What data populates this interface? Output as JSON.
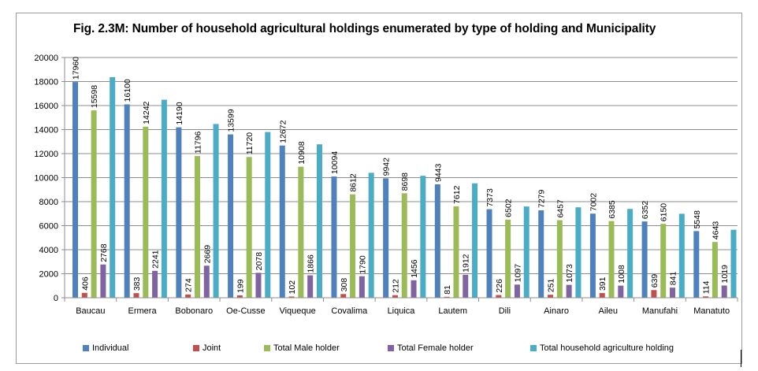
{
  "chart_data": {
    "type": "bar",
    "title": "Fig. 2.3M: Number of household agricultural holdings  enumerated by type of  holding and Municipality",
    "xlabel": "",
    "ylabel": "",
    "ylim": [
      0,
      20000
    ],
    "yticks": [
      0,
      2000,
      4000,
      6000,
      8000,
      10000,
      12000,
      14000,
      16000,
      18000,
      20000
    ],
    "ytick_labels": [
      "0",
      "2000",
      "4000",
      "6000",
      "8000",
      "10000",
      "12000",
      "14000",
      "16000",
      "18000",
      "20000"
    ],
    "grid": true,
    "legend_position": "bottom",
    "categories": [
      "Baucau",
      "Ermera",
      "Bobonaro",
      "Oe-Cusse",
      "Viqueque",
      "Covalima",
      "Liquica",
      "Lautem",
      "Dili",
      "Ainaro",
      "Aileu",
      "Manufahi",
      "Manatuto"
    ],
    "series": [
      {
        "name": "Individual",
        "color": "#4f81bd",
        "labeled": true,
        "values": [
          17960,
          16100,
          14190,
          13599,
          12672,
          10094,
          9942,
          9443,
          7373,
          7279,
          7002,
          6352,
          5548
        ]
      },
      {
        "name": "Joint",
        "color": "#c0504d",
        "labeled": true,
        "values": [
          406,
          383,
          274,
          199,
          102,
          308,
          212,
          81,
          226,
          251,
          391,
          639,
          114
        ]
      },
      {
        "name": "Total Male holder",
        "color": "#9bbb59",
        "labeled": true,
        "values": [
          15598,
          14242,
          11796,
          11720,
          10908,
          8612,
          8698,
          7612,
          6502,
          6457,
          6385,
          6150,
          4643
        ]
      },
      {
        "name": "Total Female holder",
        "color": "#8064a2",
        "labeled": true,
        "values": [
          2768,
          2241,
          2669,
          2078,
          1866,
          1790,
          1456,
          1912,
          1097,
          1073,
          1008,
          841,
          1019
        ]
      },
      {
        "name": "Total household agriculture holding",
        "color": "#4bacc6",
        "labeled": false,
        "values": [
          18366,
          16483,
          14464,
          13798,
          12774,
          10402,
          10154,
          9524,
          7599,
          7530,
          7393,
          6991,
          5662
        ]
      }
    ]
  }
}
